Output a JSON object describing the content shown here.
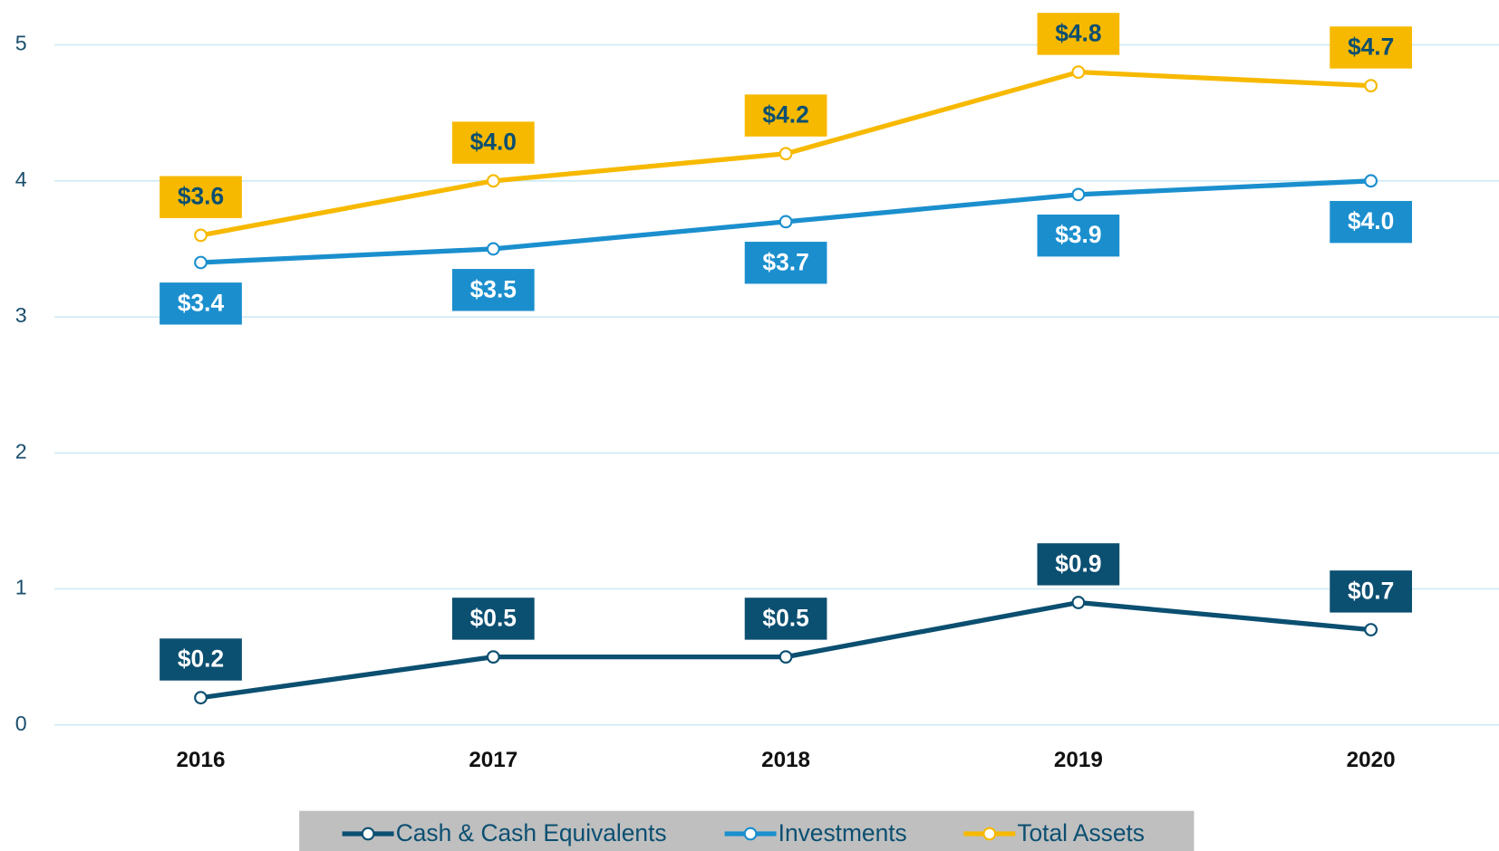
{
  "chart_data": {
    "type": "line",
    "categories": [
      "2016",
      "2017",
      "2018",
      "2019",
      "2020"
    ],
    "series": [
      {
        "name": "Cash & Cash Equivalents",
        "color": "#0b4f71",
        "label_position": "above",
        "label_text_color": "#ffffff",
        "values": [
          0.2,
          0.5,
          0.5,
          0.9,
          0.7
        ],
        "value_labels": [
          "$0.2",
          "$0.5",
          "$0.5",
          "$0.9",
          "$0.7"
        ]
      },
      {
        "name": "Investments",
        "color": "#1b8fce",
        "label_position": "below",
        "label_text_color": "#ffffff",
        "values": [
          3.4,
          3.5,
          3.7,
          3.9,
          4.0
        ],
        "value_labels": [
          "$3.4",
          "$3.5",
          "$3.7",
          "$3.9",
          "$4.0"
        ]
      },
      {
        "name": "Total Assets",
        "color": "#f7b900",
        "label_position": "above",
        "label_text_color": "#0b4f71",
        "values": [
          3.6,
          4.0,
          4.2,
          4.8,
          4.7
        ],
        "value_labels": [
          "$3.6",
          "$4.0",
          "$4.2",
          "$4.8",
          "$4.7"
        ]
      }
    ],
    "ylim": [
      0,
      5
    ],
    "yticks": [
      0,
      1,
      2,
      3,
      4,
      5
    ],
    "grid": true,
    "legend": "bottom"
  }
}
